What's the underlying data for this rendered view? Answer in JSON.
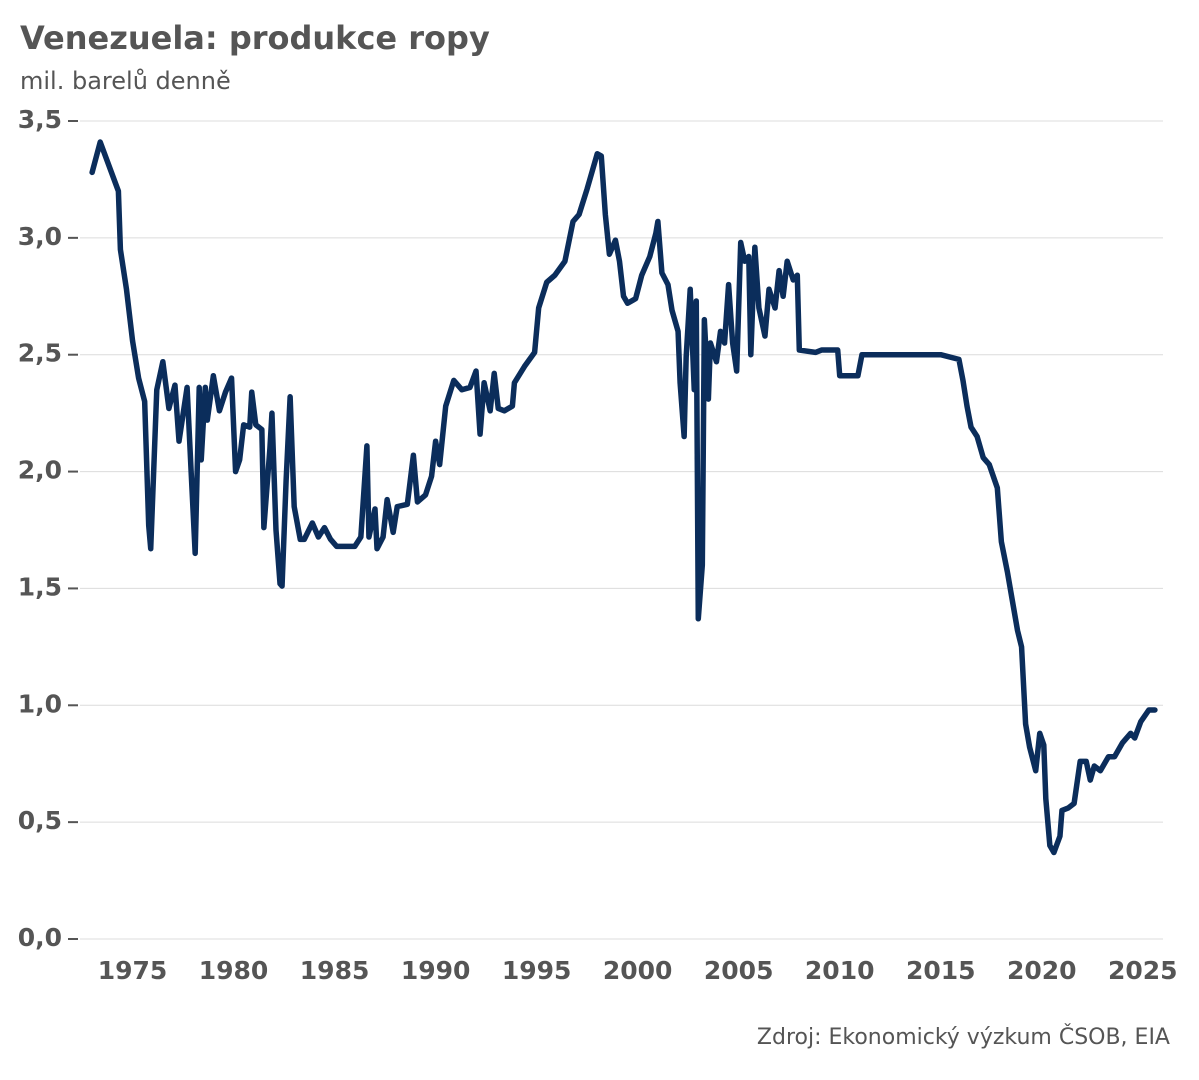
{
  "chart_data": {
    "type": "line",
    "title": "Venezuela: produkce ropy",
    "subtitle": "mil. barelů denně",
    "source": "Zdroj: Ekonomický výzkum ČSOB, EIA",
    "color": "#0b2d5b",
    "grid": true,
    "xlim": [
      1972.4,
      2026.0
    ],
    "xticks": [
      1975,
      1980,
      1985,
      1990,
      1995,
      2000,
      2005,
      2010,
      2015,
      2020,
      2025
    ],
    "ylim": [
      0,
      3.5
    ],
    "yticks": [
      {
        "value": 0,
        "label": "0,0"
      },
      {
        "value": 0.5,
        "label": "0,5"
      },
      {
        "value": 1,
        "label": "1,0"
      },
      {
        "value": 1.5,
        "label": "1,5"
      },
      {
        "value": 2,
        "label": "2,0"
      },
      {
        "value": 2.5,
        "label": "2,5"
      },
      {
        "value": 3,
        "label": "3,0"
      },
      {
        "value": 3.5,
        "label": "3,5"
      }
    ],
    "x": [
      1973.0,
      1973.4,
      1974.3,
      1974.4,
      1974.7,
      1975.0,
      1975.3,
      1975.6,
      1975.8,
      1975.9,
      1976.2,
      1976.5,
      1976.8,
      1977.1,
      1977.3,
      1977.7,
      1977.9,
      1978.1,
      1978.3,
      1978.4,
      1978.6,
      1978.7,
      1979.0,
      1979.3,
      1979.6,
      1979.9,
      1980.1,
      1980.3,
      1980.5,
      1980.8,
      1980.9,
      1981.1,
      1981.4,
      1981.5,
      1981.8,
      1981.9,
      1982.1,
      1982.3,
      1982.4,
      1982.6,
      1982.8,
      1983.0,
      1983.3,
      1983.5,
      1983.9,
      1984.2,
      1984.5,
      1984.8,
      1985.1,
      1985.5,
      1986.0,
      1986.3,
      1986.6,
      1986.7,
      1987.0,
      1987.1,
      1987.4,
      1987.6,
      1987.9,
      1988.1,
      1988.6,
      1988.9,
      1989.1,
      1989.5,
      1989.8,
      1990.0,
      1990.2,
      1990.5,
      1990.9,
      1991.3,
      1991.7,
      1992.0,
      1992.2,
      1992.4,
      1992.7,
      1992.9,
      1993.1,
      1993.4,
      1993.8,
      1993.9,
      1994.4,
      1994.9,
      1995.1,
      1995.5,
      1995.9,
      1996.4,
      1996.8,
      1997.1,
      1997.5,
      1998.0,
      1998.2,
      1998.4,
      1998.6,
      1998.9,
      1999.1,
      1999.3,
      1999.5,
      1999.9,
      2000.2,
      2000.6,
      2000.9,
      2001.0,
      2001.2,
      2001.5,
      2001.7,
      2002.0,
      2002.1,
      2002.3,
      2002.4,
      2002.6,
      2002.8,
      2002.9,
      2003.0,
      2003.2,
      2003.3,
      2003.5,
      2003.6,
      2003.9,
      2004.1,
      2004.3,
      2004.5,
      2004.7,
      2004.9,
      2005.1,
      2005.3,
      2005.5,
      2005.6,
      2005.8,
      2006.0,
      2006.3,
      2006.5,
      2006.8,
      2007.0,
      2007.2,
      2007.4,
      2007.7,
      2007.9,
      2008.0,
      2008.8,
      2009.1,
      2009.9,
      2010.0,
      2010.9,
      2011.1,
      2015.0,
      2015.9,
      2016.1,
      2016.3,
      2016.5,
      2016.8,
      2017.1,
      2017.4,
      2017.8,
      2018.0,
      2018.3,
      2018.6,
      2018.8,
      2019.0,
      2019.2,
      2019.4,
      2019.7,
      2019.9,
      2020.1,
      2020.2,
      2020.4,
      2020.6,
      2020.9,
      2021.0,
      2021.3,
      2021.6,
      2021.9,
      2022.2,
      2022.4,
      2022.6,
      2022.9,
      2023.3,
      2023.6,
      2024.0,
      2024.4,
      2024.6,
      2024.9,
      2025.3,
      2025.6
    ],
    "values": [
      3.28,
      3.41,
      3.2,
      2.95,
      2.78,
      2.56,
      2.4,
      2.3,
      1.77,
      1.67,
      2.35,
      2.47,
      2.27,
      2.37,
      2.13,
      2.36,
      2.0,
      1.65,
      2.36,
      2.05,
      2.36,
      2.22,
      2.41,
      2.26,
      2.34,
      2.4,
      2.0,
      2.05,
      2.2,
      2.19,
      2.34,
      2.2,
      2.18,
      1.76,
      2.1,
      2.25,
      1.75,
      1.52,
      1.51,
      1.96,
      2.32,
      1.85,
      1.71,
      1.71,
      1.78,
      1.72,
      1.76,
      1.71,
      1.68,
      1.68,
      1.68,
      1.72,
      2.11,
      1.72,
      1.84,
      1.67,
      1.72,
      1.88,
      1.74,
      1.85,
      1.86,
      2.07,
      1.87,
      1.9,
      1.98,
      2.13,
      2.03,
      2.28,
      2.39,
      2.35,
      2.36,
      2.43,
      2.16,
      2.38,
      2.26,
      2.42,
      2.27,
      2.26,
      2.28,
      2.38,
      2.45,
      2.51,
      2.7,
      2.81,
      2.84,
      2.9,
      3.07,
      3.1,
      3.21,
      3.36,
      3.35,
      3.1,
      2.93,
      2.99,
      2.9,
      2.75,
      2.72,
      2.74,
      2.84,
      2.92,
      3.02,
      3.07,
      2.85,
      2.8,
      2.69,
      2.6,
      2.38,
      2.15,
      2.49,
      2.78,
      2.35,
      2.73,
      1.37,
      1.6,
      2.65,
      2.31,
      2.55,
      2.47,
      2.6,
      2.55,
      2.8,
      2.55,
      2.43,
      2.98,
      2.9,
      2.92,
      2.5,
      2.96,
      2.7,
      2.58,
      2.78,
      2.7,
      2.86,
      2.75,
      2.9,
      2.82,
      2.84,
      2.52,
      2.51,
      2.52,
      2.52,
      2.41,
      2.41,
      2.5,
      2.5,
      2.48,
      2.39,
      2.28,
      2.19,
      2.15,
      2.06,
      2.03,
      1.93,
      1.7,
      1.57,
      1.42,
      1.32,
      1.25,
      0.92,
      0.82,
      0.72,
      0.88,
      0.83,
      0.6,
      0.4,
      0.37,
      0.44,
      0.55,
      0.56,
      0.58,
      0.76,
      0.76,
      0.68,
      0.74,
      0.72,
      0.78,
      0.78,
      0.84,
      0.88,
      0.86,
      0.93,
      0.98,
      0.98
    ]
  }
}
